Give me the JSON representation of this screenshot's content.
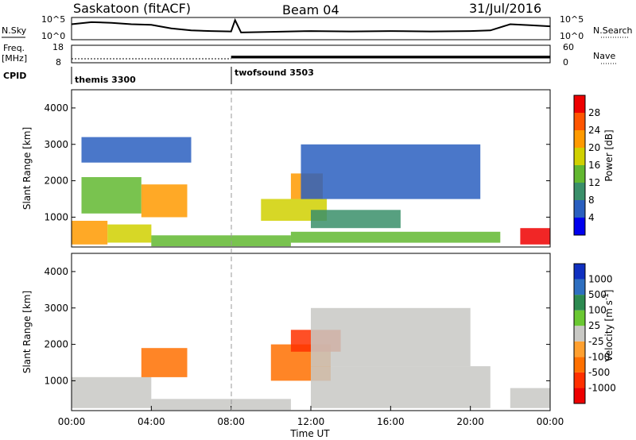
{
  "header": {
    "station": "Saskatoon (fitACF)",
    "beam": "Beam 04",
    "date": "31/Jul/2016"
  },
  "top_panels": {
    "nsky_label": "N.Sky",
    "nsearch_label": "N.Search",
    "nsky_ticks": [
      "10^5",
      "10^0"
    ],
    "nsearch_ticks": [
      "10^5",
      "10^0"
    ],
    "freq_label_line1": "Freq.",
    "freq_label_line2": "[MHz]",
    "freq_ticks": [
      "18",
      "8"
    ],
    "nave_label": "Nave",
    "nave_ticks": [
      "60",
      "0"
    ],
    "cpid_label": "CPID",
    "cpid_modes": [
      {
        "name": "themis 3300",
        "start_hour": 0
      },
      {
        "name": "twofsound 3503",
        "start_hour": 8
      }
    ]
  },
  "colors": {
    "power_scale": [
      "#0000ee",
      "#2a5fbf",
      "#3a8f6a",
      "#62b830",
      "#d0d000",
      "#ff9a00",
      "#ff5500",
      "#ee0000"
    ],
    "velocity_scale": [
      "#1030c0",
      "#2e6fc0",
      "#2c8a50",
      "#6ac832",
      "#c8c8c4",
      "#ffa030",
      "#ff7000",
      "#ff3000",
      "#ee0000"
    ]
  },
  "chart_data": [
    {
      "type": "heatmap",
      "name": "power-panel",
      "ylabel": "Slant Range [km]",
      "xlabel": "",
      "xlim": [
        0,
        24
      ],
      "ylim": [
        180,
        4500
      ],
      "yticks": [
        "1000",
        "2000",
        "3000",
        "4000"
      ],
      "colorbar_label": "Power [dB]",
      "colorbar_ticks": [
        "4",
        "8",
        "12",
        "16",
        "20",
        "24",
        "28"
      ],
      "colorbar_range": [
        0,
        30
      ],
      "regions": [
        {
          "x": [
            0.0,
            1.8
          ],
          "y": [
            250,
            900
          ],
          "value": 22
        },
        {
          "x": [
            1.8,
            4.0
          ],
          "y": [
            300,
            800
          ],
          "value": 18
        },
        {
          "x": [
            0.5,
            3.5
          ],
          "y": [
            1100,
            2100
          ],
          "value": 14
        },
        {
          "x": [
            3.5,
            5.8
          ],
          "y": [
            1000,
            1900
          ],
          "value": 22
        },
        {
          "x": [
            0.5,
            6.0
          ],
          "y": [
            2500,
            3200
          ],
          "value": 6
        },
        {
          "x": [
            4.0,
            11.0
          ],
          "y": [
            200,
            500
          ],
          "value": 12
        },
        {
          "x": [
            9.5,
            12.8
          ],
          "y": [
            900,
            1500
          ],
          "value": 16
        },
        {
          "x": [
            11.0,
            12.6
          ],
          "y": [
            1500,
            2200
          ],
          "value": 22
        },
        {
          "x": [
            12.0,
            16.5
          ],
          "y": [
            700,
            1200
          ],
          "value": 10
        },
        {
          "x": [
            11.5,
            20.5
          ],
          "y": [
            1500,
            3000
          ],
          "value": 6
        },
        {
          "x": [
            11.0,
            21.5
          ],
          "y": [
            300,
            600
          ],
          "value": 12
        },
        {
          "x": [
            22.5,
            24.0
          ],
          "y": [
            250,
            700
          ],
          "value": 28
        }
      ]
    },
    {
      "type": "heatmap",
      "name": "velocity-panel",
      "ylabel": "Slant Range [km]",
      "xlabel": "Time UT",
      "xlim": [
        0,
        24
      ],
      "ylim": [
        180,
        4500
      ],
      "yticks": [
        "1000",
        "2000",
        "3000",
        "4000"
      ],
      "xticks": [
        "00:00",
        "04:00",
        "08:00",
        "12:00",
        "16:00",
        "20:00",
        "00:00"
      ],
      "colorbar_label": "Velocity [m s^-1]",
      "colorbar_ticks": [
        "1000",
        "500",
        "100",
        "25",
        "-25",
        "-100",
        "-500",
        "-1000"
      ],
      "regions": [
        {
          "x": [
            0.0,
            4.0
          ],
          "y": [
            250,
            1100
          ],
          "value": 0
        },
        {
          "x": [
            3.5,
            5.8
          ],
          "y": [
            1100,
            1900
          ],
          "value": -150
        },
        {
          "x": [
            4.0,
            11.0
          ],
          "y": [
            200,
            500
          ],
          "value": 0
        },
        {
          "x": [
            10.0,
            13.0
          ],
          "y": [
            1000,
            2000
          ],
          "value": -200
        },
        {
          "x": [
            11.0,
            13.5
          ],
          "y": [
            1800,
            2400
          ],
          "value": -600
        },
        {
          "x": [
            12.0,
            21.0
          ],
          "y": [
            250,
            1400
          ],
          "value": 0
        },
        {
          "x": [
            12.0,
            20.0
          ],
          "y": [
            1400,
            3000
          ],
          "value": 0
        },
        {
          "x": [
            22.0,
            24.0
          ],
          "y": [
            250,
            800
          ],
          "value": 0
        }
      ]
    }
  ],
  "timeseries": {
    "nsky": [
      {
        "x": 0.0,
        "v": 0.75
      },
      {
        "x": 1.0,
        "v": 0.85
      },
      {
        "x": 2.0,
        "v": 0.82
      },
      {
        "x": 3.0,
        "v": 0.75
      },
      {
        "x": 4.0,
        "v": 0.72
      },
      {
        "x": 5.0,
        "v": 0.55
      },
      {
        "x": 6.0,
        "v": 0.45
      },
      {
        "x": 7.0,
        "v": 0.42
      },
      {
        "x": 8.0,
        "v": 0.4
      },
      {
        "x": 8.2,
        "v": 0.95
      },
      {
        "x": 8.5,
        "v": 0.35
      },
      {
        "x": 10.0,
        "v": 0.38
      },
      {
        "x": 12.0,
        "v": 0.42
      },
      {
        "x": 14.0,
        "v": 0.4
      },
      {
        "x": 16.0,
        "v": 0.42
      },
      {
        "x": 18.0,
        "v": 0.4
      },
      {
        "x": 20.0,
        "v": 0.42
      },
      {
        "x": 21.0,
        "v": 0.45
      },
      {
        "x": 22.0,
        "v": 0.75
      },
      {
        "x": 23.0,
        "v": 0.7
      },
      {
        "x": 24.0,
        "v": 0.65
      }
    ],
    "freq_before": 10.3,
    "freq_after_low": 10.5,
    "freq_after_high": 12.0
  }
}
